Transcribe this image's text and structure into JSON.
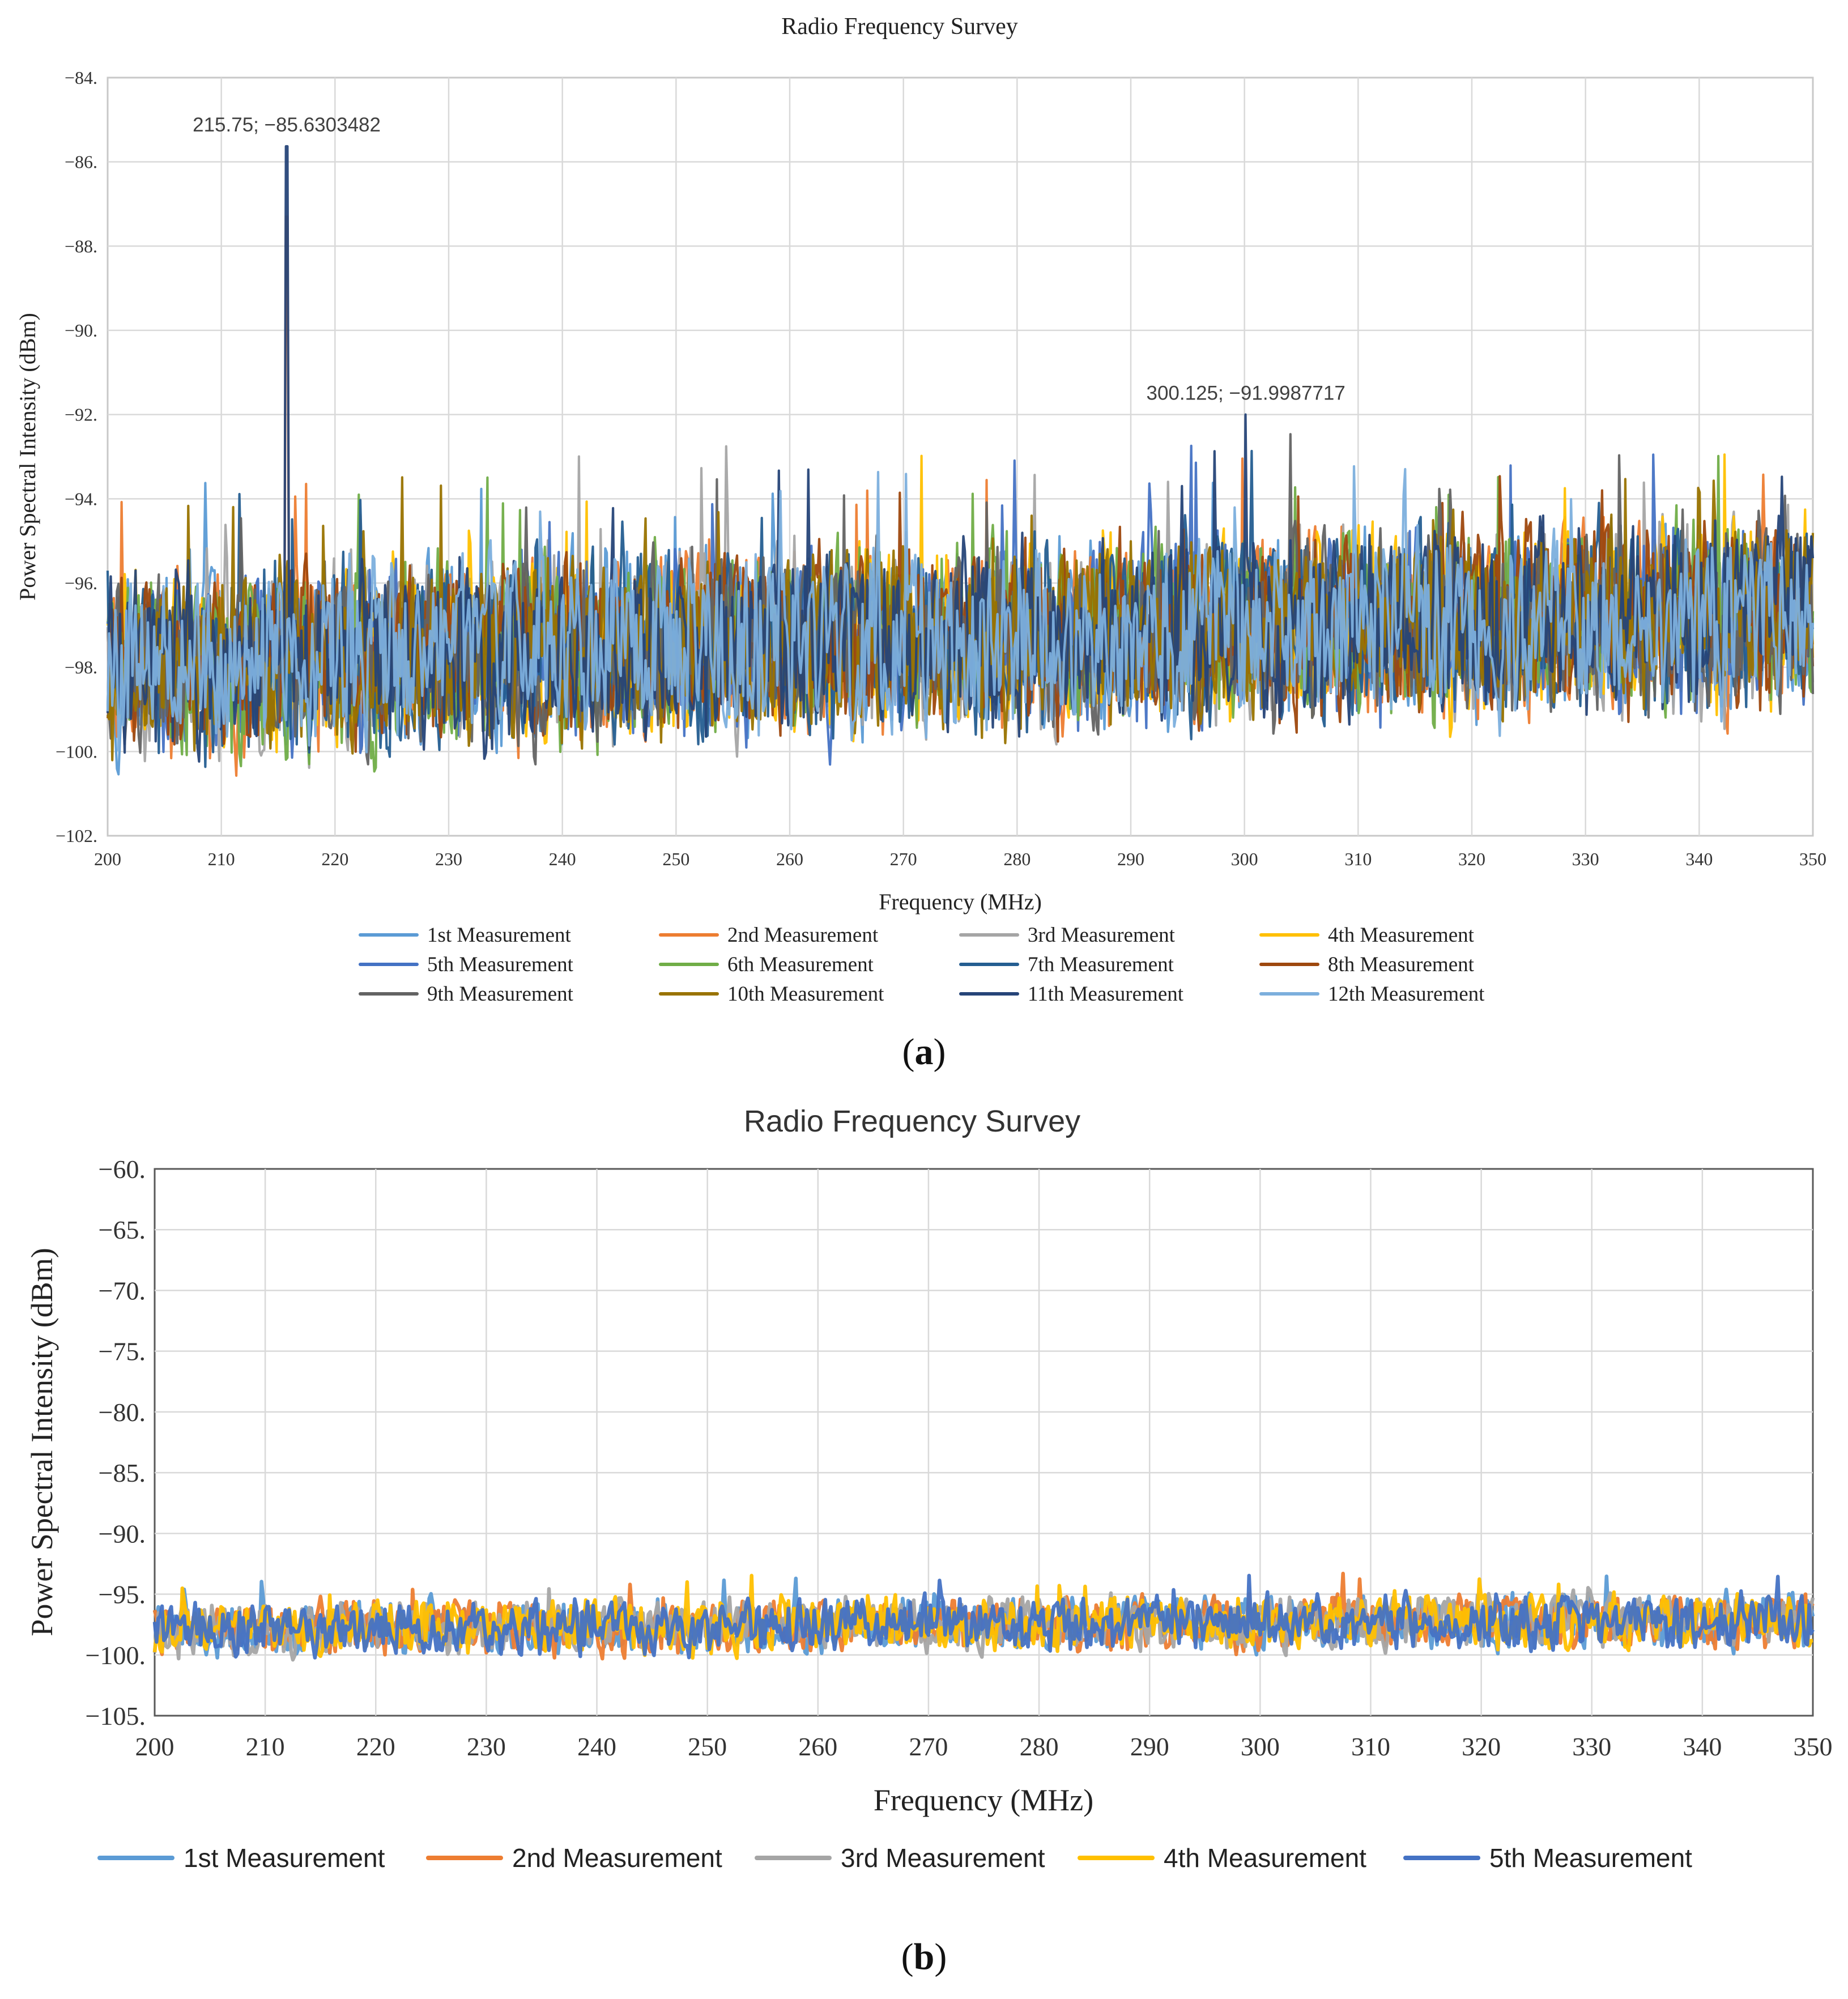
{
  "chart_data": [
    {
      "type": "line",
      "panel": "a",
      "title": "Radio Frequency Survey",
      "xlabel": "Frequency (MHz)",
      "ylabel": "Power Spectral Intensity (dBm)",
      "xlim": [
        200,
        350
      ],
      "ylim": [
        -102,
        -84
      ],
      "x_ticks": [
        200,
        210,
        220,
        230,
        240,
        250,
        260,
        270,
        280,
        290,
        300,
        310,
        320,
        330,
        340,
        350
      ],
      "y_ticks": [
        -84,
        -86,
        -88,
        -90,
        -92,
        -94,
        -96,
        -98,
        -100,
        -102
      ],
      "y_tick_labels": [
        "−84.",
        "−86.",
        "−88.",
        "−90.",
        "−92.",
        "−94.",
        "−96.",
        "−98.",
        "−100.",
        "−102."
      ],
      "grid": true,
      "legend_position": "bottom",
      "series": [
        {
          "name": "1st Measurement",
          "color": "#5b9bd5"
        },
        {
          "name": "2nd Measurement",
          "color": "#ed7d31"
        },
        {
          "name": "3rd Measurement",
          "color": "#a5a5a5"
        },
        {
          "name": "4th Measurement",
          "color": "#ffc000"
        },
        {
          "name": "5th Measurement",
          "color": "#4472c4"
        },
        {
          "name": "6th Measurement",
          "color": "#70ad47"
        },
        {
          "name": "7th Measurement",
          "color": "#255e91"
        },
        {
          "name": "8th Measurement",
          "color": "#9e480e"
        },
        {
          "name": "9th Measurement",
          "color": "#636363"
        },
        {
          "name": "10th Measurement",
          "color": "#997300"
        },
        {
          "name": "11th Measurement",
          "color": "#264478"
        },
        {
          "name": "12th Measurement",
          "color": "#7cafdd"
        }
      ],
      "noise_floor": {
        "range": [
          -101,
          -94
        ]
      },
      "peaks": [
        {
          "x": 215.75,
          "y": -85.6303482,
          "series": "11th Measurement"
        },
        {
          "x": 215.75,
          "y": -87.3,
          "series": "2nd Measurement"
        },
        {
          "x": 300.125,
          "y": -91.9987717,
          "series": "11th Measurement"
        },
        {
          "x": 331.5,
          "y": -93.8,
          "series": "8th Measurement"
        }
      ],
      "annotations": [
        {
          "text": "215.75; −85.6303482",
          "x": 215.75,
          "y": -85.6303482
        },
        {
          "text": "300.125; −91.9987717",
          "x": 300.125,
          "y": -91.9987717
        }
      ],
      "caption_open": "(",
      "caption_letter": "a",
      "caption_close": ")"
    },
    {
      "type": "line",
      "panel": "b",
      "title": "Radio Frequency Survey",
      "xlabel": "Frequency (MHz)",
      "ylabel": "Power Spectral Intensity (dBm)",
      "xlim": [
        200,
        350
      ],
      "ylim": [
        -105,
        -60
      ],
      "x_ticks": [
        200,
        210,
        220,
        230,
        240,
        250,
        260,
        270,
        280,
        290,
        300,
        310,
        320,
        330,
        340,
        350
      ],
      "y_ticks": [
        -60,
        -65,
        -70,
        -75,
        -80,
        -85,
        -90,
        -95,
        -100,
        -105
      ],
      "y_tick_labels": [
        "−60.",
        "−65.",
        "−70.",
        "−75.",
        "−80.",
        "−85.",
        "−90.",
        "−95.",
        "−100.",
        "−105."
      ],
      "grid": true,
      "legend_position": "bottom",
      "series": [
        {
          "name": "1st Measurement",
          "color": "#5b9bd5"
        },
        {
          "name": "2nd Measurement",
          "color": "#ed7d31"
        },
        {
          "name": "3rd Measurement",
          "color": "#a5a5a5"
        },
        {
          "name": "4th Measurement",
          "color": "#ffc000"
        },
        {
          "name": "5th Measurement",
          "color": "#4472c4"
        }
      ],
      "noise_floor": {
        "range": [
          -101,
          -94
        ]
      },
      "peaks": [
        {
          "x": 243.0,
          "y": -94.2,
          "series": "2nd Measurement"
        },
        {
          "x": 258.0,
          "y": -93.7,
          "series": "1st Measurement"
        },
        {
          "x": 307.5,
          "y": -93.3,
          "series": "2nd Measurement"
        }
      ],
      "annotations": [],
      "caption_open": "(",
      "caption_letter": "b",
      "caption_close": ")"
    }
  ]
}
